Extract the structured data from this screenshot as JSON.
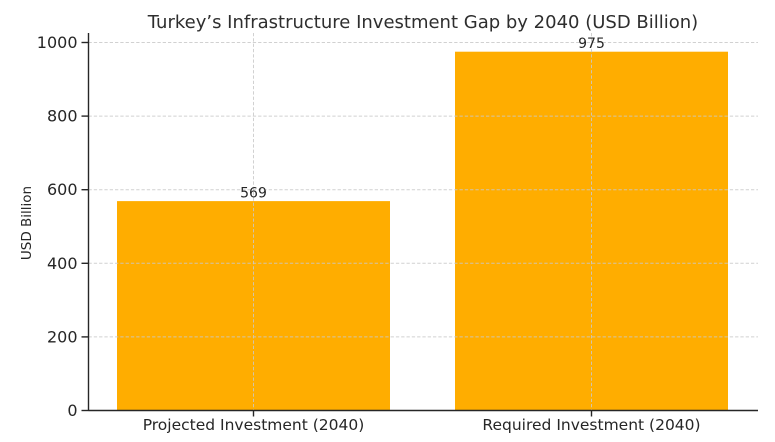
{
  "chart_data": {
    "type": "bar",
    "title": "Turkey’s Infrastructure Investment Gap by 2040 (USD Billion)",
    "categories": [
      "Projected Investment (2040)",
      "Required Investment (2040)"
    ],
    "values": [
      569,
      975
    ],
    "value_labels": [
      "569",
      "975"
    ],
    "xlabel": "",
    "ylabel": "USD Billion",
    "ylim": [
      0,
      1000
    ],
    "yticks": [
      0,
      200,
      400,
      600,
      800,
      1000
    ],
    "grid": true,
    "grid_style": "dashed",
    "grid_above_bars": true,
    "legend_position": "none",
    "colors": {
      "bar": "#FFAD00",
      "grid": "#c9c9c9",
      "axis": "#262626",
      "text": "#262626",
      "background": "#ffffff"
    }
  }
}
